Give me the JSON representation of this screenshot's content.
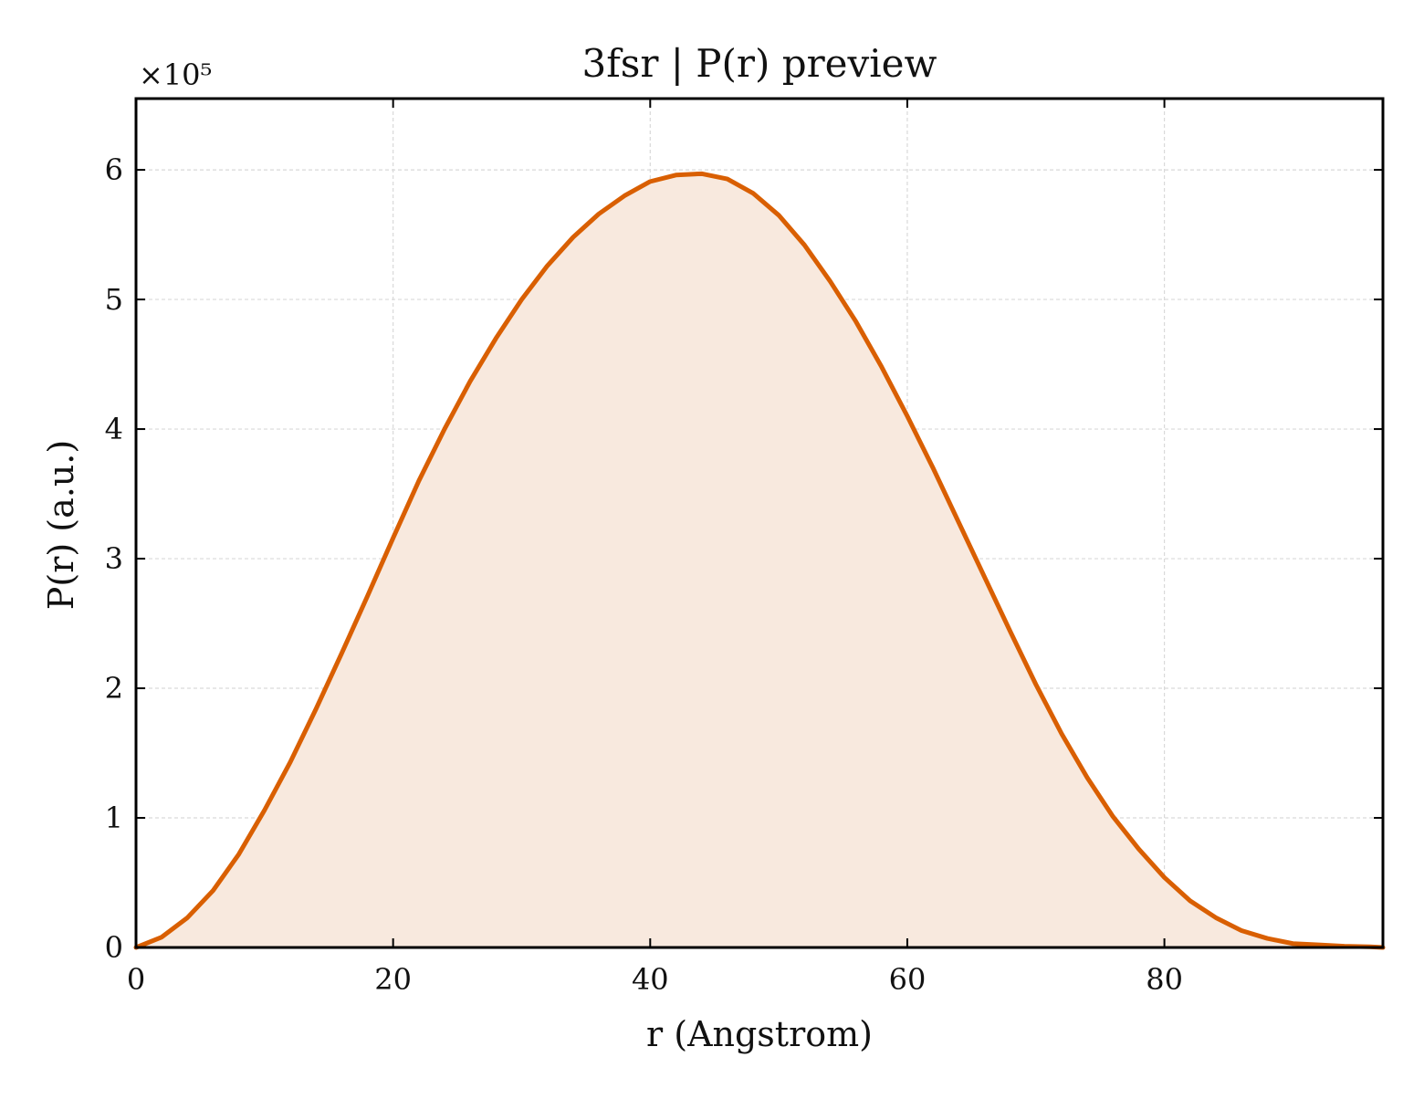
{
  "chart_data": {
    "type": "area",
    "title": "3fsr | P(r) preview",
    "xlabel": "r (Angstrom)",
    "ylabel": "P(r) (a.u.)",
    "y_offset_label": "×10⁵",
    "xlim": [
      0,
      97
    ],
    "ylim": [
      0,
      6.55
    ],
    "y_scale_factor": 100000,
    "xticks": [
      0,
      20,
      40,
      60,
      80
    ],
    "yticks": [
      0,
      1,
      2,
      3,
      4,
      5,
      6
    ],
    "grid": true,
    "series": [
      {
        "x": [
          0,
          2,
          4,
          6,
          8,
          10,
          12,
          14,
          16,
          18,
          20,
          22,
          24,
          26,
          28,
          30,
          32,
          34,
          36,
          38,
          40,
          42,
          44,
          46,
          48,
          50,
          52,
          54,
          56,
          58,
          60,
          62,
          64,
          66,
          68,
          70,
          72,
          74,
          76,
          78,
          80,
          82,
          84,
          86,
          88,
          90,
          92,
          94,
          96,
          97
        ],
        "values": [
          0.0,
          0.08,
          0.23,
          0.44,
          0.72,
          1.06,
          1.43,
          1.84,
          2.27,
          2.71,
          3.16,
          3.6,
          4.0,
          4.37,
          4.7,
          5.0,
          5.26,
          5.48,
          5.66,
          5.8,
          5.91,
          5.96,
          5.97,
          5.93,
          5.82,
          5.65,
          5.42,
          5.14,
          4.83,
          4.48,
          4.1,
          3.7,
          3.28,
          2.86,
          2.44,
          2.03,
          1.65,
          1.31,
          1.01,
          0.76,
          0.54,
          0.36,
          0.23,
          0.13,
          0.07,
          0.03,
          0.02,
          0.01,
          0.005,
          0.0
        ]
      }
    ],
    "colors": {
      "line": "#d95f02",
      "fill": "#f8e9de",
      "grid": "#d9d9d9",
      "axes": "#000000"
    }
  }
}
